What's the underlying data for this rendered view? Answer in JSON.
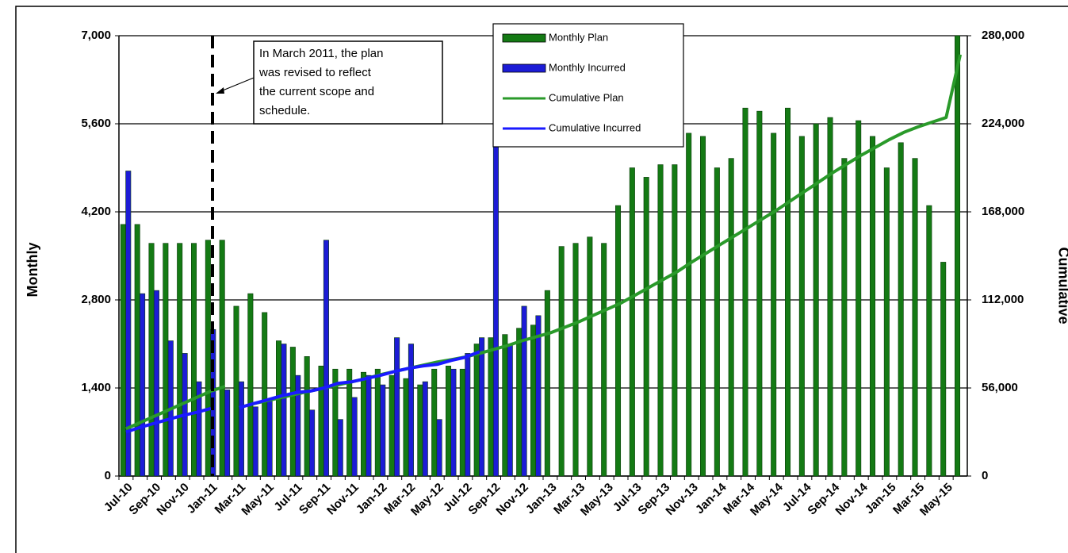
{
  "chart_data": {
    "type": "bar",
    "y_title": "Monthly",
    "y2_title": "Cumulative",
    "annotation": [
      "In March 2011, the plan",
      "was revised to reflect",
      "the current scope and",
      "schedule."
    ],
    "categories": [
      "Jul-10",
      null,
      "Sep-10",
      null,
      "Nov-10",
      null,
      "Jan-11",
      null,
      "Mar-11",
      null,
      "May-11",
      null,
      "Jul-11",
      null,
      "Sep-11",
      null,
      "Nov-11",
      null,
      "Jan-12",
      null,
      "Mar-12",
      null,
      "May-12",
      null,
      "Jul-12",
      null,
      "Sep-12",
      null,
      "Nov-12",
      null,
      "Jan-13",
      null,
      "Mar-13",
      null,
      "May-13",
      null,
      "Jul-13",
      null,
      "Sep-13",
      null,
      "Nov-13",
      null,
      "Jan-14",
      null,
      "Mar-14",
      null,
      "May-14",
      null,
      "Jul-14",
      null,
      "Sep-14",
      null,
      "Nov-14",
      null,
      "Jan-15",
      null,
      "Mar-15",
      null,
      "May-15",
      null
    ],
    "series": [
      {
        "name": "Monthly Plan",
        "kind": "bar",
        "color": "#147a14",
        "values": [
          4000,
          4000,
          3700,
          3700,
          3700,
          3700,
          3750,
          3750,
          2700,
          2900,
          2600,
          2150,
          2050,
          1900,
          1750,
          1700,
          1700,
          1650,
          1700,
          1600,
          1550,
          1450,
          1700,
          1750,
          1700,
          2100,
          2200,
          2250,
          2350,
          2400,
          2950,
          3650,
          3700,
          3800,
          3700,
          4300,
          4900,
          4750,
          4950,
          4950,
          5450,
          5400,
          4900,
          5050,
          5850,
          5800,
          5450,
          5850,
          5400,
          5600,
          5700,
          5050,
          5650,
          5400,
          4900,
          5300,
          5050,
          4300,
          3400,
          7000
        ]
      },
      {
        "name": "Monthly Incurred",
        "kind": "bar",
        "color": "#1c1cd6",
        "values": [
          4850,
          2900,
          2950,
          2150,
          1950,
          1500,
          2330,
          1370,
          1500,
          1100,
          1200,
          2100,
          1600,
          1050,
          3750,
          900,
          1250,
          1600,
          1450,
          2200,
          2100,
          1500,
          900,
          1700,
          1950,
          2200,
          6000,
          2100,
          2700,
          2550,
          null,
          null,
          null,
          null,
          null,
          null,
          null,
          null,
          null,
          null,
          null,
          null,
          null,
          null,
          null,
          null,
          null,
          null,
          null,
          null,
          null,
          null,
          null,
          null,
          null,
          null,
          null,
          null,
          null,
          null
        ]
      },
      {
        "name": "Cumulative Plan",
        "kind": "line",
        "axis": "y2",
        "color": "#2a9a2a",
        "values": [
          30000,
          34000,
          38000,
          42000,
          46000,
          50000,
          54000,
          57000,
          null,
          46000,
          48000,
          50000,
          52000,
          54000,
          56000,
          58000,
          60000,
          62000,
          64500,
          66500,
          68500,
          70500,
          72500,
          74000,
          75700,
          78000,
          80500,
          83000,
          86000,
          88500,
          91000,
          94500,
          98000,
          102000,
          106000,
          110000,
          115000,
          120000,
          125000,
          130000,
          136000,
          141500,
          147000,
          152500,
          158000,
          163500,
          169000,
          175000,
          181000,
          187000,
          193000,
          198500,
          204000,
          209000,
          214000,
          218500,
          222000,
          225000,
          228000,
          268000
        ]
      },
      {
        "name": "Cumulative Incurred",
        "kind": "line",
        "axis": "y2",
        "color": "#1a1aff",
        "values": [
          28000,
          31000,
          33500,
          36000,
          38500,
          40500,
          43000,
          null,
          43500,
          46000,
          48500,
          51000,
          53000,
          54000,
          56000,
          59000,
          60000,
          62000,
          64000,
          66500,
          68500,
          70000,
          71000,
          73500,
          75500,
          79000,
          null,
          null,
          null,
          null,
          null,
          null,
          null,
          null,
          null,
          null,
          null,
          null,
          null,
          null,
          null,
          null,
          null,
          null,
          null,
          null,
          null,
          null,
          null,
          null,
          null,
          null,
          null,
          null,
          null,
          null,
          null,
          null,
          null,
          null
        ]
      }
    ],
    "ylim": [
      0,
      7000
    ],
    "yticks": [
      0,
      {
        "value": 1400,
        "label": "1,400"
      },
      {
        "value": 2800,
        "label": "2,800"
      },
      {
        "value": 4200,
        "label": "4,200"
      },
      {
        "value": 5600,
        "label": "5,600"
      },
      {
        "value": 7000,
        "label": "7,000"
      }
    ],
    "y2lim": [
      0,
      280000
    ],
    "y2ticks": [
      0,
      {
        "value": 56000,
        "label": "56,000"
      },
      {
        "value": 112000,
        "label": "112,000"
      },
      {
        "value": 168000,
        "label": "168,000"
      },
      {
        "value": 224000,
        "label": "224,000"
      },
      {
        "value": 280000,
        "label": "280,000"
      }
    ],
    "grid": true,
    "legend": "top"
  }
}
